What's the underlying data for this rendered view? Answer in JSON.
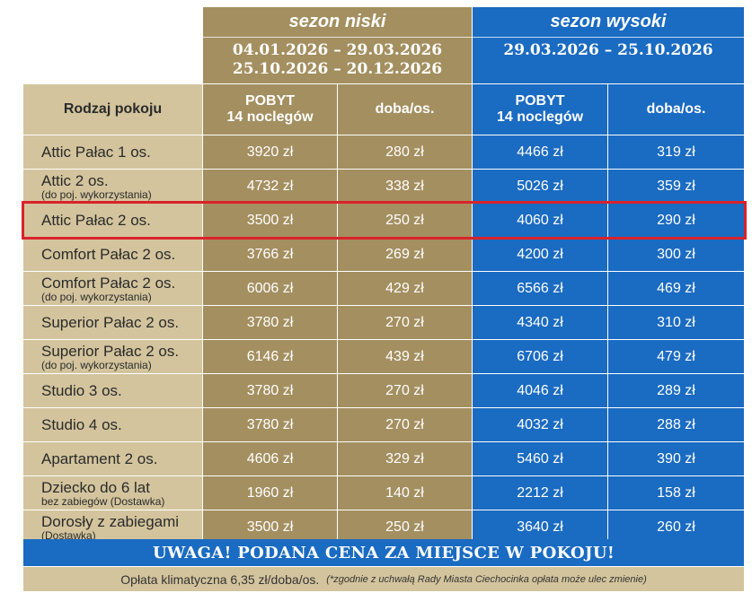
{
  "seasons": {
    "low": {
      "name": "sezon niski",
      "dates": [
        "04.01.2026 – 29.03.2026",
        "25.10.2026 – 20.12.2026"
      ]
    },
    "high": {
      "name": "sezon wysoki",
      "dates": [
        "29.03.2026 – 25.10.2026"
      ]
    }
  },
  "headers": {
    "room_type": "Rodzaj pokoju",
    "stay_line1": "POBYT",
    "stay_line2": "14 noclegów",
    "per_day": "doba/os."
  },
  "rows": [
    {
      "name": "Attic Pałac 1 os.",
      "sub": "",
      "low_stay": "3920 zł",
      "low_day": "280 zł",
      "high_stay": "4466 zł",
      "high_day": "319 zł"
    },
    {
      "name": "Attic 2 os.",
      "sub": "(do poj. wykorzystania)",
      "low_stay": "4732 zł",
      "low_day": "338 zł",
      "high_stay": "5026 zł",
      "high_day": "359 zł"
    },
    {
      "name": "Attic Pałac 2 os.",
      "sub": "",
      "low_stay": "3500 zł",
      "low_day": "250 zł",
      "high_stay": "4060 zł",
      "high_day": "290 zł"
    },
    {
      "name": "Comfort Pałac 2 os.",
      "sub": "",
      "low_stay": "3766 zł",
      "low_day": "269 zł",
      "high_stay": "4200 zł",
      "high_day": "300 zł"
    },
    {
      "name": "Comfort Pałac 2 os.",
      "sub": "(do poj. wykorzystania)",
      "low_stay": "6006 zł",
      "low_day": "429 zł",
      "high_stay": "6566 zł",
      "high_day": "469 zł"
    },
    {
      "name": "Superior Pałac 2 os.",
      "sub": "",
      "low_stay": "3780 zł",
      "low_day": "270 zł",
      "high_stay": "4340 zł",
      "high_day": "310 zł"
    },
    {
      "name": "Superior Pałac 2 os.",
      "sub": "(do poj. wykorzystania)",
      "low_stay": "6146 zł",
      "low_day": "439 zł",
      "high_stay": "6706 zł",
      "high_day": "479 zł"
    },
    {
      "name": "Studio 3 os.",
      "sub": "",
      "low_stay": "3780 zł",
      "low_day": "270 zł",
      "high_stay": "4046 zł",
      "high_day": "289 zł"
    },
    {
      "name": "Studio 4 os.",
      "sub": "",
      "low_stay": "3780 zł",
      "low_day": "270 zł",
      "high_stay": "4032 zł",
      "high_day": "288 zł"
    },
    {
      "name": "Apartament 2 os.",
      "sub": "",
      "low_stay": "4606 zł",
      "low_day": "329 zł",
      "high_stay": "5460 zł",
      "high_day": "390 zł"
    },
    {
      "name": "Dziecko do 6 lat",
      "sub": "bez zabiegów (Dostawka)",
      "low_stay": "1960 zł",
      "low_day": "140 zł",
      "high_stay": "2212 zł",
      "high_day": "158 zł"
    },
    {
      "name": "Dorosły z zabiegami",
      "sub": "(Dostawka)",
      "low_stay": "3500 zł",
      "low_day": "250 zł",
      "high_stay": "3640 zł",
      "high_day": "260 zł"
    }
  ],
  "highlighted_row_index": 2,
  "notice": "UWAGA! PODANA CENA ZA MIEJSCE W POKOJU!",
  "footer": {
    "text": "Opłata klimatyczna 6,35 zł/doba/os.",
    "note": "(*zgodnie z uchwałą Rady Miasta Ciechocinka opłata może ulec zmienie)"
  },
  "colors": {
    "low_season": "#a48f60",
    "high_season": "#1a6bc2",
    "name_column": "#d3c49d",
    "highlight_border": "#d9222a"
  }
}
